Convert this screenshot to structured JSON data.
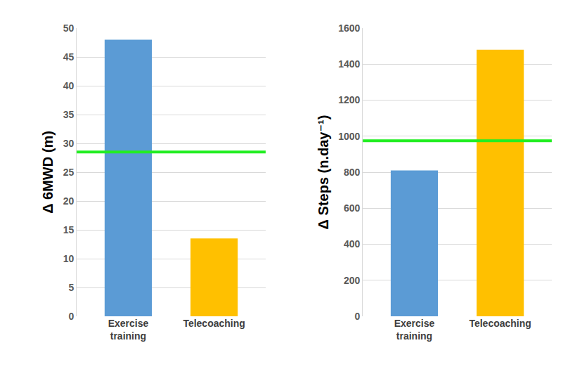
{
  "chart_data": [
    {
      "type": "bar",
      "y_label": "Δ 6MWD (m)",
      "categories": [
        "Exercise training",
        "Telecoaching"
      ],
      "values": [
        48,
        13.5
      ],
      "colors": [
        "#5b9bd5",
        "#ffc000"
      ],
      "ylim": [
        0,
        50
      ],
      "yticks": [
        0,
        5,
        10,
        15,
        20,
        25,
        30,
        35,
        40,
        45,
        50
      ],
      "grid": true,
      "reference_lines": [
        {
          "value": 28.5,
          "color": "#22ee22"
        }
      ]
    },
    {
      "type": "bar",
      "y_label": "Δ Steps (n.day⁻¹)",
      "categories": [
        "Exercise training",
        "Telecoaching"
      ],
      "values": [
        810,
        1480
      ],
      "colors": [
        "#5b9bd5",
        "#ffc000"
      ],
      "ylim": [
        0,
        1600
      ],
      "yticks": [
        0,
        200,
        400,
        600,
        800,
        1000,
        1200,
        1400,
        1600
      ],
      "grid": true,
      "reference_lines": [
        {
          "value": 975,
          "color": "#22ee22"
        }
      ]
    }
  ]
}
